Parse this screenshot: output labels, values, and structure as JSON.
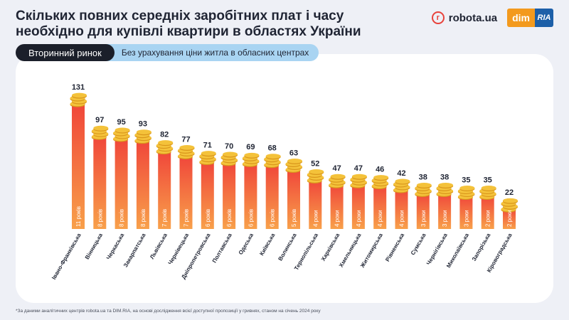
{
  "header": {
    "title": "Скільких повних середніх заробітних плат і часу необхідно для купівлі квартири в областях України",
    "robota_logo_text": "robota.ua",
    "robota_logo_glyph": "r",
    "dim_logo_text": "dim",
    "ria_logo_text": "RIA"
  },
  "tabs": {
    "active_label": "Вторинний ринок",
    "note_label": "Без урахування ціни житла в обласних центрах"
  },
  "footnote": "*За даними аналітичних центрів  robota.ua та DIM.RIA, на основі дослідження всієї доступної пропозиції у гривнях, станом на січень 2024 року",
  "colors": {
    "bar_top": "#f0453a",
    "bar_bottom": "#f8a04a",
    "coin": "#f4c23a",
    "coin_dark": "#d9961c"
  },
  "chart_data": {
    "type": "bar",
    "categories": [
      "Івано-Франківська",
      "Вінницька",
      "Черкаська",
      "Закарпатська",
      "Львівська",
      "Чернівецька",
      "Дніпропетровська",
      "Полтавська",
      "Одеська",
      "Київська",
      "Волинська",
      "Тернопільська",
      "Харківська",
      "Хмельницька",
      "Житомирська",
      "Рівненська",
      "Сумська",
      "Чернігівська",
      "Миколаївська",
      "Запорізька",
      "Кіровоградська"
    ],
    "values": [
      131,
      97,
      95,
      93,
      82,
      77,
      71,
      70,
      69,
      68,
      63,
      52,
      47,
      47,
      46,
      42,
      38,
      38,
      35,
      35,
      22
    ],
    "bar_labels": [
      "11 років",
      "8 років",
      "8 років",
      "8 років",
      "7 років",
      "7 років",
      "6 років",
      "6 років",
      "6 років",
      "6 років",
      "5 років",
      "4 роки",
      "4 роки",
      "4 роки",
      "4 роки",
      "4 роки",
      "3 роки",
      "3 роки",
      "3 роки",
      "2 роки",
      "2 роки"
    ],
    "ylim": [
      0,
      131
    ],
    "grid": false,
    "legend": "none"
  }
}
